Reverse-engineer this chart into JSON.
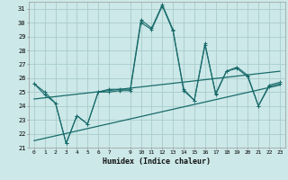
{
  "xlabel": "Humidex (Indice chaleur)",
  "background_color": "#cce8e8",
  "grid_color": "#aacccc",
  "line_color": "#1a6b6b",
  "xlim": [
    -0.5,
    23.5
  ],
  "ylim": [
    21,
    31.5
  ],
  "yticks": [
    21,
    22,
    23,
    24,
    25,
    26,
    27,
    28,
    29,
    30,
    31
  ],
  "xtick_vals": [
    0,
    1,
    2,
    3,
    4,
    5,
    6,
    7,
    9,
    10,
    11,
    12,
    13,
    14,
    15,
    16,
    17,
    18,
    19,
    20,
    21,
    22,
    23
  ],
  "line1": [
    25.6,
    25.0,
    24.2,
    21.3,
    23.3,
    22.7,
    25.0,
    25.2,
    25.2,
    25.2,
    30.2,
    29.6,
    31.3,
    29.5,
    25.2,
    24.4,
    28.5,
    24.8,
    26.5,
    26.8,
    26.2,
    24.0,
    25.5,
    25.7
  ],
  "line2": [
    25.6,
    24.8,
    24.2,
    21.3,
    23.3,
    22.7,
    25.0,
    25.0,
    25.1,
    25.1,
    30.0,
    29.5,
    31.2,
    29.4,
    25.1,
    24.4,
    28.4,
    24.9,
    26.5,
    26.7,
    26.1,
    24.0,
    25.4,
    25.6
  ],
  "line3_x": [
    0,
    23
  ],
  "line3_y": [
    21.5,
    25.5
  ],
  "line4_x": [
    0,
    23
  ],
  "line4_y": [
    24.5,
    26.5
  ]
}
